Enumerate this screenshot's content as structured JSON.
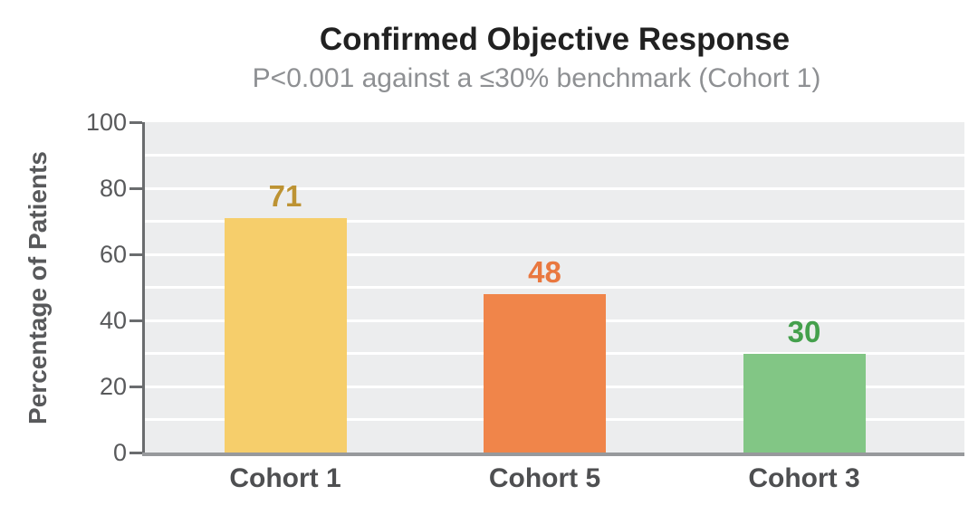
{
  "chart_data": {
    "type": "bar",
    "title": "Confirmed Objective Response",
    "subtitle": "P<0.001 against a ≤30% benchmark (Cohort 1)",
    "ylabel": "Percentage of Patients",
    "xlabel": "",
    "categories": [
      "Cohort 1",
      "Cohort 5",
      "Cohort 3"
    ],
    "values": [
      71,
      48,
      30
    ],
    "bar_colors": [
      "#F6CE6B",
      "#F0854A",
      "#82C685"
    ],
    "value_label_colors": [
      "#BD9333",
      "#E97840",
      "#44A04C"
    ],
    "ylim": [
      0,
      100
    ],
    "yticks": [
      0,
      20,
      40,
      60,
      80,
      100
    ],
    "grid_step": 10,
    "grid": true,
    "legend": false,
    "colors": {
      "plot_bg": "#ECEDEE",
      "gridline": "#FFFFFF",
      "y_axis": "#6A6C6E",
      "x_axis": "#97999C",
      "tick_label": "#58595B",
      "axis_title": "#58595B",
      "x_tick_label": "#4E4F51",
      "title": "#212121",
      "subtitle": "#8E9093"
    }
  }
}
